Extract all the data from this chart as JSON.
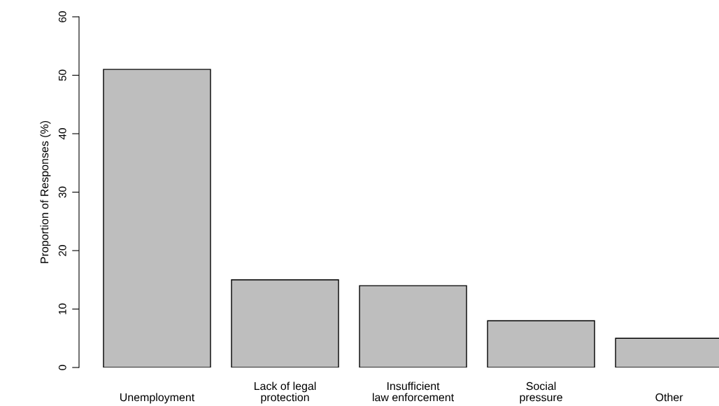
{
  "chart_data": {
    "type": "bar",
    "ylabel": "Proportion of Responses (%)",
    "categories": [
      "Unemployment",
      "Lack of legal\nprotection",
      "Insufficient\nlaw enforcement",
      "Social\npressure",
      "Other"
    ],
    "values": [
      51,
      15,
      14,
      8,
      5
    ],
    "color": "#bebebe",
    "ylim": [
      0,
      60
    ],
    "yticks": [
      0,
      10,
      20,
      30,
      40,
      50,
      60
    ],
    "grid": false,
    "legend": false
  }
}
